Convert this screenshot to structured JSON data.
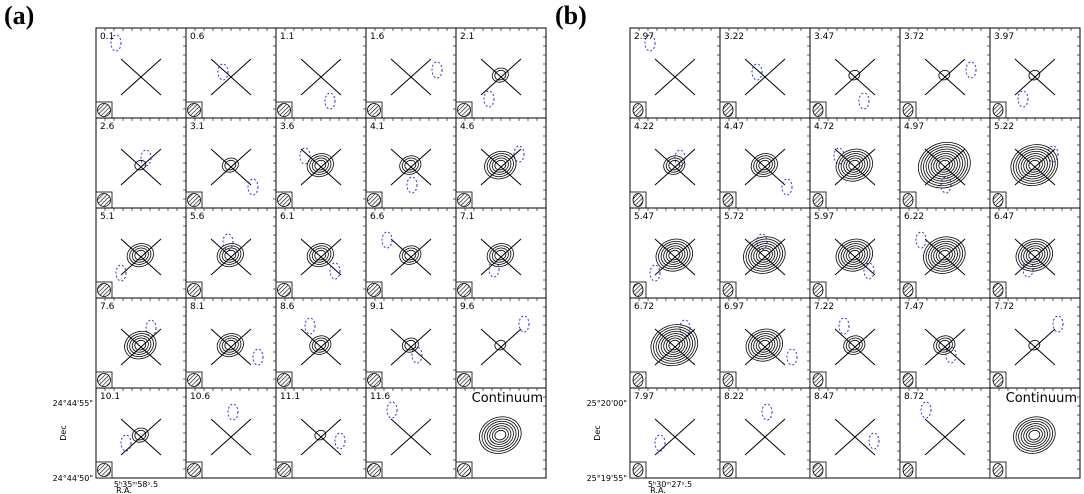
{
  "panels": [
    {
      "label": "(a)",
      "channels": [
        "0.1",
        "0.6",
        "1.1",
        "1.6",
        "2.1",
        "2.6",
        "3.1",
        "3.6",
        "4.1",
        "4.6",
        "5.1",
        "5.6",
        "6.1",
        "6.6",
        "7.1",
        "7.6",
        "8.1",
        "8.6",
        "9.1",
        "9.6",
        "10.1",
        "10.6",
        "11.1",
        "11.6",
        "Continuum"
      ],
      "dec_ticks": [
        "24°44'55\"",
        "24°44'50\""
      ],
      "dec_label": "Dec",
      "ra_tick": "5ʰ35ᵐ58ˢ.5",
      "ra_label": "R.A."
    },
    {
      "label": "(b)",
      "channels": [
        "2.97",
        "3.22",
        "3.47",
        "3.72",
        "3.97",
        "4.22",
        "4.47",
        "4.72",
        "4.97",
        "5.22",
        "5.47",
        "5.72",
        "5.97",
        "6.22",
        "6.47",
        "6.72",
        "6.97",
        "7.22",
        "7.47",
        "7.72",
        "7.97",
        "8.22",
        "8.47",
        "8.72",
        "Continuum"
      ],
      "dec_ticks": [
        "25°20'00\"",
        "25°19'55\""
      ],
      "dec_label": "Dec",
      "ra_tick": "5ʰ30ᵐ27ˢ.5",
      "ra_label": "R.A."
    }
  ]
}
